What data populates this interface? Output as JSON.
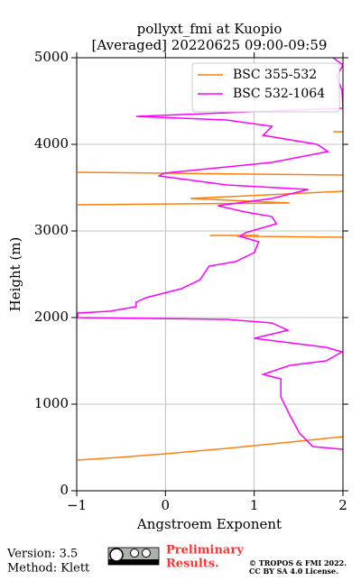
{
  "chart_data": {
    "type": "line",
    "title": [
      "pollyxt_fmi at Kuopio",
      "[Averaged] 20220625 09:00-09:59"
    ],
    "xlabel": "Angstroem Exponent",
    "ylabel": "Height (m)",
    "xlim": [
      -1,
      2
    ],
    "ylim": [
      0,
      5000
    ],
    "xticks": [
      {
        "value": -1,
        "label": "−1"
      },
      0,
      1,
      2
    ],
    "yticks": [
      0,
      1000,
      2000,
      3000,
      4000,
      5000
    ],
    "grid": true,
    "legend": "upper right",
    "series": [
      {
        "name": "BSC 355-532",
        "color": "#ff7f0e",
        "x": [
          -0.99,
          -0.53,
          0,
          0.69,
          1.51,
          2.0,
          null,
          0.5,
          1.05,
          0.8,
          2.0,
          null,
          -0.99,
          1.4,
          0.28,
          2.0,
          null,
          -0.99,
          2.0,
          null,
          1.89,
          2.0
        ],
        "values": [
          354,
          385,
          427,
          490,
          573,
          625,
          null,
          2948,
          2948,
          2940,
          2927,
          null,
          3302,
          3323,
          3375,
          3458,
          null,
          3677,
          3646,
          null,
          4146,
          4146
        ]
      },
      {
        "name": "BSC 532-1064",
        "color": "#ff00ff",
        "x": [
          1.89,
          2.0,
          1.93,
          1.99,
          2.0,
          1.2,
          -0.33,
          0.69,
          1.2,
          1.1,
          1.71,
          1.83,
          1.2,
          -0.02,
          -0.07,
          0.69,
          1.61,
          1.2,
          0.59,
          0.9,
          1.2,
          1.25,
          0.9,
          0.84,
          1.05,
          1.0,
          0.79,
          0.49,
          0.39,
          0.18,
          -0.22,
          -0.33,
          -0.33,
          -0.63,
          -0.99,
          -0.99,
          0.69,
          1.2,
          1.38,
          1.0,
          1.81,
          1.99,
          1.81,
          1.4,
          1.1,
          1.3,
          1.3,
          1.4,
          1.51,
          1.66,
          2.0
        ],
        "values": [
          5000,
          4917,
          4781,
          4625,
          4417,
          4385,
          4323,
          4281,
          4208,
          4104,
          4000,
          3917,
          3792,
          3667,
          3635,
          3531,
          3479,
          3375,
          3292,
          3219,
          3167,
          3083,
          2979,
          2938,
          2875,
          2750,
          2646,
          2594,
          2438,
          2333,
          2229,
          2177,
          2125,
          2073,
          2052,
          2000,
          1979,
          1938,
          1854,
          1760,
          1656,
          1604,
          1500,
          1448,
          1344,
          1292,
          1083,
          875,
          667,
          510,
          479
        ]
      }
    ]
  },
  "footer": {
    "version": "Version: 3.5",
    "method": "Method: Klett",
    "notice": [
      "Preliminary",
      "Results."
    ],
    "copyright": [
      "© TROPOS & FMI 2022.",
      "CC BY SA 4.0 License."
    ]
  }
}
